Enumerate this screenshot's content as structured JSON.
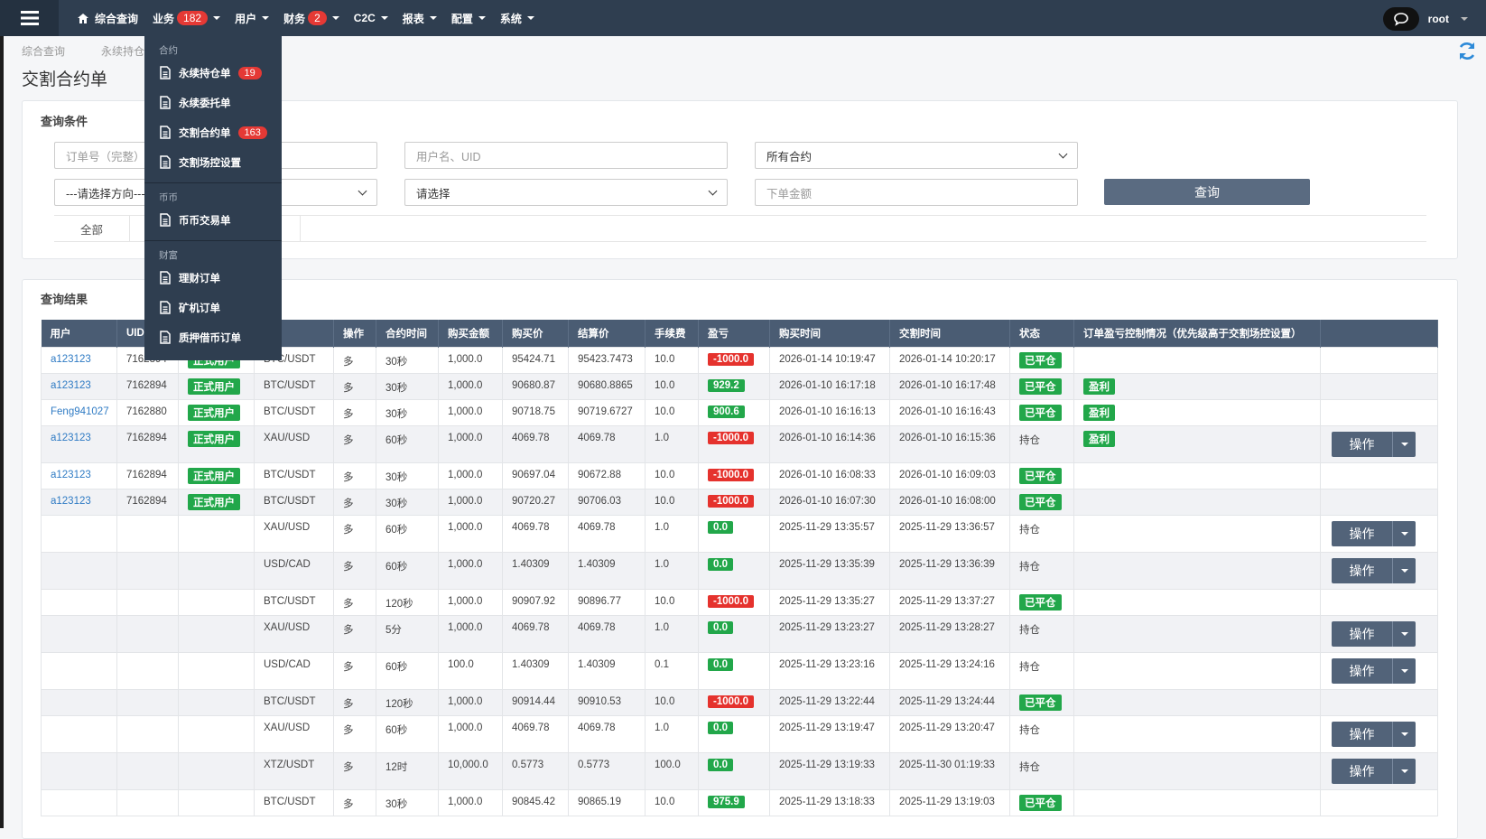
{
  "nav": {
    "items": [
      {
        "label": "综合查询"
      },
      {
        "label": "业务",
        "badge": 182
      },
      {
        "label": "用户"
      },
      {
        "label": "财务",
        "badge": 2
      },
      {
        "label": "C2C"
      },
      {
        "label": "报表"
      },
      {
        "label": "配置"
      },
      {
        "label": "系统"
      }
    ],
    "user": "root"
  },
  "menu": {
    "sections": [
      {
        "title": "合约",
        "items": [
          {
            "label": "永续持仓单",
            "badge": 19
          },
          {
            "label": "永续委托单"
          },
          {
            "label": "交割合约单",
            "badge": 163
          },
          {
            "label": "交割场控设置"
          }
        ]
      },
      {
        "title": "币币",
        "items": [
          {
            "label": "币币交易单"
          }
        ]
      },
      {
        "title": "财富",
        "items": [
          {
            "label": "理财订单"
          },
          {
            "label": "矿机订单"
          },
          {
            "label": "质押借币订单"
          }
        ]
      }
    ]
  },
  "breadcrumb": [
    "综合查询",
    "永续持仓"
  ],
  "page_title": "交割合约单",
  "query": {
    "title": "查询条件",
    "order_placeholder": "订单号（完整）",
    "user_placeholder": "用户名、UID",
    "contract_select": "所有合约",
    "direction_select": "---请选择方向---",
    "type_select": "请选择",
    "amount_placeholder": "下单金额",
    "button": "查询",
    "tabs": [
      "全部"
    ]
  },
  "results": {
    "title": "查询结果",
    "action_label": "操作",
    "headers": [
      "用户",
      "UID",
      null,
      null,
      "操作",
      "合约时间",
      "购买金额",
      "购买价",
      "结算价",
      "手续费",
      "盈亏",
      "购买时间",
      "交割时间",
      "状态",
      "订单盈亏控制情况（优先级高于交割场控设置）",
      null
    ],
    "rows": [
      {
        "cells": [
          "a123123",
          "7162894",
          "正式用户",
          "BTC/USDT",
          "多",
          "30秒",
          "1,000.0",
          "95424.71",
          "95423.7473",
          "10.0",
          "-1000.0",
          "2026-01-14 10:19:47",
          "2026-01-14 10:20:17",
          "已平仓",
          null
        ],
        "action": false
      },
      {
        "cells": [
          "a123123",
          "7162894",
          "正式用户",
          "BTC/USDT",
          "多",
          "30秒",
          "1,000.0",
          "90680.87",
          "90680.8865",
          "10.0",
          "929.2",
          "2026-01-10 16:17:18",
          "2026-01-10 16:17:48",
          "已平仓",
          "盈利"
        ],
        "action": false
      },
      {
        "cells": [
          "Feng941027",
          "7162880",
          "正式用户",
          "BTC/USDT",
          "多",
          "30秒",
          "1,000.0",
          "90718.75",
          "90719.6727",
          "10.0",
          "900.6",
          "2026-01-10 16:16:13",
          "2026-01-10 16:16:43",
          "已平仓",
          "盈利"
        ],
        "action": false
      },
      {
        "cells": [
          "a123123",
          "7162894",
          "正式用户",
          "XAU/USD",
          "多",
          "60秒",
          "1,000.0",
          "4069.78",
          "4069.78",
          "1.0",
          "-1000.0",
          "2026-01-10 16:14:36",
          "2026-01-10 16:15:36",
          "持仓",
          "盈利"
        ],
        "action": true
      },
      {
        "cells": [
          "a123123",
          "7162894",
          "正式用户",
          "BTC/USDT",
          "多",
          "30秒",
          "1,000.0",
          "90697.04",
          "90672.88",
          "10.0",
          "-1000.0",
          "2026-01-10 16:08:33",
          "2026-01-10 16:09:03",
          "已平仓",
          null
        ],
        "action": false
      },
      {
        "cells": [
          "a123123",
          "7162894",
          "正式用户",
          "BTC/USDT",
          "多",
          "30秒",
          "1,000.0",
          "90720.27",
          "90706.03",
          "10.0",
          "-1000.0",
          "2026-01-10 16:07:30",
          "2026-01-10 16:08:00",
          "已平仓",
          null
        ],
        "action": false
      },
      {
        "cells": [
          null,
          null,
          null,
          "XAU/USD",
          "多",
          "60秒",
          "1,000.0",
          "4069.78",
          "4069.78",
          "1.0",
          "0.0",
          "2025-11-29 13:35:57",
          "2025-11-29 13:36:57",
          "持仓",
          null
        ],
        "action": true
      },
      {
        "cells": [
          null,
          null,
          null,
          "USD/CAD",
          "多",
          "60秒",
          "1,000.0",
          "1.40309",
          "1.40309",
          "1.0",
          "0.0",
          "2025-11-29 13:35:39",
          "2025-11-29 13:36:39",
          "持仓",
          null
        ],
        "action": true
      },
      {
        "cells": [
          null,
          null,
          null,
          "BTC/USDT",
          "多",
          "120秒",
          "1,000.0",
          "90907.92",
          "90896.77",
          "10.0",
          "-1000.0",
          "2025-11-29 13:35:27",
          "2025-11-29 13:37:27",
          "已平仓",
          null
        ],
        "action": false
      },
      {
        "cells": [
          null,
          null,
          null,
          "XAU/USD",
          "多",
          "5分",
          "1,000.0",
          "4069.78",
          "4069.78",
          "1.0",
          "0.0",
          "2025-11-29 13:23:27",
          "2025-11-29 13:28:27",
          "持仓",
          null
        ],
        "action": true
      },
      {
        "cells": [
          null,
          null,
          null,
          "USD/CAD",
          "多",
          "60秒",
          "100.0",
          "1.40309",
          "1.40309",
          "0.1",
          "0.0",
          "2025-11-29 13:23:16",
          "2025-11-29 13:24:16",
          "持仓",
          null
        ],
        "action": true
      },
      {
        "cells": [
          null,
          null,
          null,
          "BTC/USDT",
          "多",
          "120秒",
          "1,000.0",
          "90914.44",
          "90910.53",
          "10.0",
          "-1000.0",
          "2025-11-29 13:22:44",
          "2025-11-29 13:24:44",
          "已平仓",
          null
        ],
        "action": false
      },
      {
        "cells": [
          null,
          null,
          null,
          "XAU/USD",
          "多",
          "60秒",
          "1,000.0",
          "4069.78",
          "4069.78",
          "1.0",
          "0.0",
          "2025-11-29 13:19:47",
          "2025-11-29 13:20:47",
          "持仓",
          null
        ],
        "action": true
      },
      {
        "cells": [
          null,
          null,
          null,
          "XTZ/USDT",
          "多",
          "12时",
          "10,000.0",
          "0.5773",
          "0.5773",
          "100.0",
          "0.0",
          "2025-11-29 13:19:33",
          "2025-11-30 01:19:33",
          "持仓",
          null
        ],
        "action": true
      },
      {
        "cells": [
          null,
          null,
          null,
          "BTC/USDT",
          "多",
          "30秒",
          "1,000.0",
          "90845.42",
          "90865.19",
          "10.0",
          "975.9",
          "2025-11-29 13:18:33",
          "2025-11-29 13:19:03",
          "已平仓",
          null
        ],
        "action": false
      }
    ]
  }
}
